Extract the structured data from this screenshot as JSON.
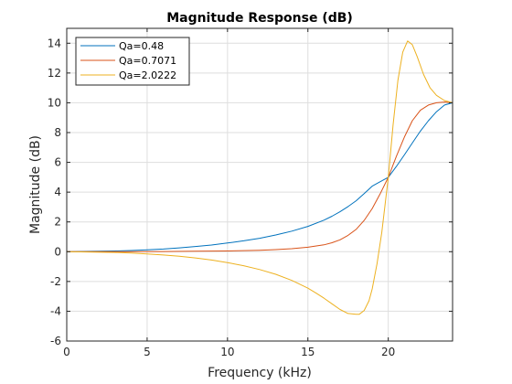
{
  "chart_data": {
    "type": "line",
    "title": "Magnitude Response (dB)",
    "xlabel": "Frequency (kHz)",
    "ylabel": "Magnitude (dB)",
    "xlim": [
      0,
      24
    ],
    "ylim": [
      -6,
      15
    ],
    "xticks": [
      0,
      5,
      10,
      15,
      20
    ],
    "yticks": [
      -6,
      -4,
      -2,
      0,
      2,
      4,
      6,
      8,
      10,
      12,
      14
    ],
    "grid": true,
    "legend_position": "top-left",
    "series": [
      {
        "name": "Qa=0.48",
        "color": "#0072bd",
        "x": [
          0,
          3,
          4,
          5,
          6,
          7,
          8,
          9,
          10,
          11,
          12,
          13,
          14,
          15,
          16,
          16.5,
          17,
          17.5,
          18,
          18.5,
          19,
          19.5,
          20,
          20.5,
          21,
          21.5,
          22,
          22.5,
          23,
          23.5,
          24
        ],
        "y": [
          0,
          0.05,
          0.08,
          0.12,
          0.18,
          0.26,
          0.35,
          0.45,
          0.58,
          0.73,
          0.9,
          1.12,
          1.38,
          1.7,
          2.12,
          2.38,
          2.68,
          3.03,
          3.42,
          3.9,
          4.4,
          4.7,
          5.0,
          5.72,
          6.5,
          7.3,
          8.1,
          8.8,
          9.4,
          9.85,
          10.0
        ]
      },
      {
        "name": "Qa=0.7071",
        "color": "#d95319",
        "x": [
          0,
          4,
          6,
          8,
          10,
          12,
          13,
          14,
          15,
          16,
          16.5,
          17,
          17.5,
          18,
          18.5,
          19,
          19.5,
          20,
          20.5,
          21,
          21.5,
          22,
          22.5,
          23,
          23.5,
          24
        ],
        "y": [
          0,
          0,
          0.01,
          0.03,
          0.05,
          0.1,
          0.14,
          0.2,
          0.3,
          0.46,
          0.6,
          0.8,
          1.1,
          1.5,
          2.1,
          2.9,
          3.9,
          5.0,
          6.4,
          7.7,
          8.8,
          9.5,
          9.85,
          10.0,
          10.05,
          10.0
        ]
      },
      {
        "name": "Qa=2.0222",
        "color": "#edb120",
        "x": [
          0,
          3,
          4,
          5,
          6,
          7,
          8,
          9,
          10,
          11,
          12,
          13,
          14,
          15,
          15.5,
          16,
          16.5,
          17,
          17.5,
          18,
          18.2,
          18.5,
          18.8,
          19,
          19.3,
          19.6,
          20,
          20.3,
          20.6,
          20.9,
          21.2,
          21.5,
          21.8,
          22.2,
          22.6,
          23,
          23.5,
          24
        ],
        "y": [
          0,
          -0.05,
          -0.09,
          -0.15,
          -0.22,
          -0.31,
          -0.42,
          -0.56,
          -0.73,
          -0.94,
          -1.2,
          -1.52,
          -1.93,
          -2.45,
          -2.77,
          -3.12,
          -3.5,
          -3.88,
          -4.15,
          -4.2,
          -4.2,
          -3.95,
          -3.3,
          -2.5,
          -0.8,
          1.3,
          5.0,
          8.5,
          11.5,
          13.4,
          14.15,
          13.9,
          13.1,
          11.9,
          11.0,
          10.5,
          10.15,
          10.0
        ]
      }
    ]
  }
}
